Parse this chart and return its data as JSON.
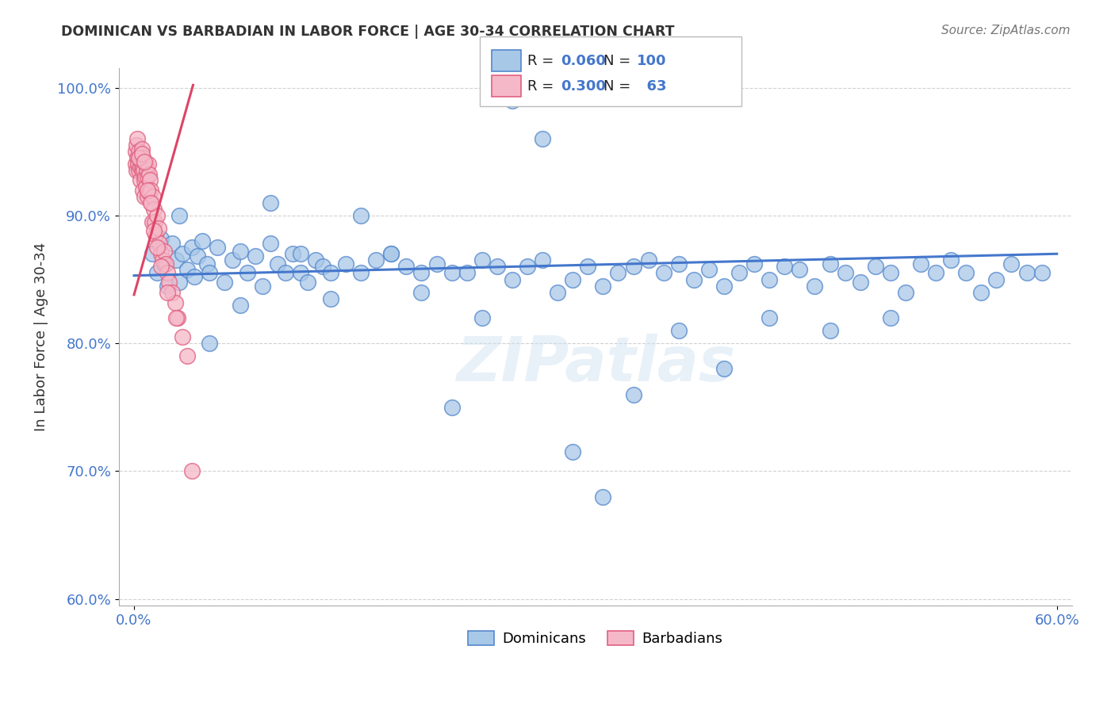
{
  "title": "DOMINICAN VS BARBADIAN IN LABOR FORCE | AGE 30-34 CORRELATION CHART",
  "source": "Source: ZipAtlas.com",
  "ylabel": "In Labor Force | Age 30-34",
  "xlabel": "",
  "blue_label": "Dominicans",
  "pink_label": "Barbadians",
  "blue_R": 0.06,
  "blue_N": 100,
  "pink_R": 0.3,
  "pink_N": 63,
  "blue_color": "#a8c8e8",
  "pink_color": "#f5b8c8",
  "blue_edge_color": "#5588cc",
  "pink_edge_color": "#e06080",
  "blue_line_color": "#4477cc",
  "pink_line_color": "#dd4466",
  "background_color": "#ffffff",
  "grid_color": "#cccccc",
  "xlim": [
    -1.0,
    62.0
  ],
  "ylim": [
    0.595,
    1.015
  ],
  "yticks": [
    0.6,
    0.7,
    0.8,
    0.9,
    1.0
  ],
  "ytick_labels": [
    "60.0%",
    "70.0%",
    "80.0%",
    "90.0%",
    "100.0%"
  ],
  "xtick_left_label": "0.0%",
  "xtick_right_label": "60.0%",
  "blue_x": [
    1.2,
    1.5,
    1.8,
    2.0,
    2.2,
    2.5,
    2.8,
    3.0,
    3.2,
    3.5,
    3.8,
    4.0,
    4.2,
    4.5,
    4.8,
    5.0,
    5.5,
    6.0,
    6.5,
    7.0,
    7.5,
    8.0,
    8.5,
    9.0,
    9.5,
    10.0,
    10.5,
    11.0,
    11.5,
    12.0,
    12.5,
    13.0,
    14.0,
    15.0,
    16.0,
    17.0,
    18.0,
    19.0,
    20.0,
    21.0,
    22.0,
    23.0,
    24.0,
    25.0,
    26.0,
    27.0,
    28.0,
    29.0,
    30.0,
    31.0,
    32.0,
    33.0,
    34.0,
    35.0,
    36.0,
    37.0,
    38.0,
    39.0,
    40.0,
    41.0,
    42.0,
    43.0,
    44.0,
    45.0,
    46.0,
    47.0,
    48.0,
    49.0,
    50.0,
    51.0,
    52.0,
    53.0,
    54.0,
    55.0,
    56.0,
    57.0,
    58.0,
    59.0,
    60.0,
    3.0,
    5.0,
    7.0,
    9.0,
    11.0,
    13.0,
    15.0,
    17.0,
    19.0,
    21.0,
    23.0,
    25.0,
    27.0,
    29.0,
    31.0,
    33.0,
    36.0,
    39.0,
    42.0,
    46.0,
    50.0
  ],
  "blue_y": [
    0.87,
    0.855,
    0.882,
    0.862,
    0.845,
    0.878,
    0.865,
    0.848,
    0.87,
    0.858,
    0.875,
    0.852,
    0.868,
    0.88,
    0.862,
    0.855,
    0.875,
    0.848,
    0.865,
    0.872,
    0.855,
    0.868,
    0.845,
    0.878,
    0.862,
    0.855,
    0.87,
    0.855,
    0.848,
    0.865,
    0.86,
    0.855,
    0.862,
    0.855,
    0.865,
    0.87,
    0.86,
    0.855,
    0.862,
    0.855,
    0.855,
    0.865,
    0.86,
    0.85,
    0.86,
    0.865,
    0.84,
    0.85,
    0.86,
    0.845,
    0.855,
    0.86,
    0.865,
    0.855,
    0.862,
    0.85,
    0.858,
    0.845,
    0.855,
    0.862,
    0.85,
    0.86,
    0.858,
    0.845,
    0.862,
    0.855,
    0.848,
    0.86,
    0.855,
    0.84,
    0.862,
    0.855,
    0.865,
    0.855,
    0.84,
    0.85,
    0.862,
    0.855,
    0.855,
    0.9,
    0.8,
    0.83,
    0.91,
    0.87,
    0.835,
    0.9,
    0.87,
    0.84,
    0.75,
    0.82,
    0.99,
    0.96,
    0.715,
    0.68,
    0.76,
    0.81,
    0.78,
    0.82,
    0.81,
    0.82
  ],
  "pink_x": [
    0.1,
    0.1,
    0.15,
    0.15,
    0.2,
    0.2,
    0.25,
    0.3,
    0.3,
    0.35,
    0.4,
    0.4,
    0.45,
    0.5,
    0.5,
    0.55,
    0.6,
    0.6,
    0.65,
    0.7,
    0.7,
    0.75,
    0.8,
    0.8,
    0.85,
    0.9,
    0.9,
    0.95,
    1.0,
    1.0,
    1.05,
    1.1,
    1.15,
    1.2,
    1.25,
    1.3,
    1.35,
    1.4,
    1.5,
    1.6,
    1.7,
    1.8,
    1.9,
    2.0,
    2.1,
    2.2,
    2.3,
    2.5,
    2.7,
    2.9,
    3.2,
    3.5,
    0.3,
    0.5,
    0.7,
    0.9,
    1.1,
    1.3,
    1.5,
    1.8,
    2.2,
    2.8,
    3.8
  ],
  "pink_y": [
    0.94,
    0.95,
    0.935,
    0.955,
    0.945,
    0.96,
    0.94,
    0.95,
    0.935,
    0.945,
    0.938,
    0.928,
    0.942,
    0.952,
    0.935,
    0.945,
    0.938,
    0.92,
    0.935,
    0.928,
    0.915,
    0.93,
    0.94,
    0.922,
    0.935,
    0.93,
    0.915,
    0.94,
    0.932,
    0.918,
    0.928,
    0.92,
    0.91,
    0.895,
    0.915,
    0.905,
    0.895,
    0.885,
    0.9,
    0.89,
    0.878,
    0.87,
    0.865,
    0.872,
    0.862,
    0.855,
    0.848,
    0.84,
    0.832,
    0.82,
    0.805,
    0.79,
    0.945,
    0.948,
    0.942,
    0.92,
    0.91,
    0.888,
    0.875,
    0.86,
    0.84,
    0.82,
    0.7
  ],
  "pink_trend_x0": 0.0,
  "pink_trend_y0": 0.838,
  "pink_trend_x1": 3.9,
  "pink_trend_y1": 1.002,
  "blue_trend_x0": 0.0,
  "blue_trend_y0": 0.853,
  "blue_trend_x1": 61.0,
  "blue_trend_y1": 0.87
}
